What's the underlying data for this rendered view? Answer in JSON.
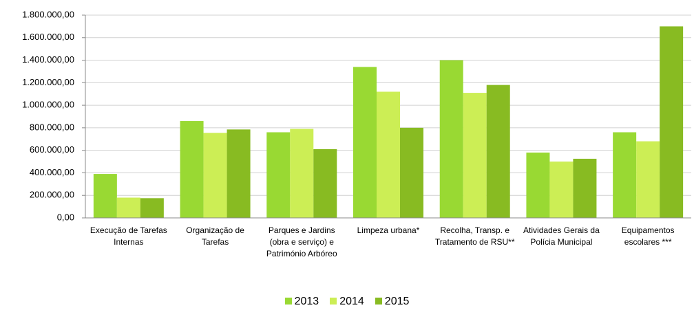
{
  "chart_data": {
    "type": "bar",
    "categories": [
      "Execução de Tarefas Internas",
      "Organização de Tarefas",
      "Parques e Jardins (obra e serviço) e Património Arbóreo",
      "Limpeza urbana*",
      "Recolha, Transp. e Tratamento de RSU**",
      "Atividades Gerais da Polícia Municipal",
      "Equipamentos escolares ***"
    ],
    "series": [
      {
        "name": "2013",
        "color": "#99d933",
        "values": [
          390000,
          860000,
          760000,
          1340000,
          1400000,
          580000,
          760000
        ]
      },
      {
        "name": "2014",
        "color": "#ccee55",
        "values": [
          180000,
          755000,
          790000,
          1120000,
          1110000,
          500000,
          680000
        ]
      },
      {
        "name": "2015",
        "color": "#88bb22",
        "values": [
          175000,
          785000,
          610000,
          800000,
          1180000,
          525000,
          1700000
        ]
      }
    ],
    "ylim": [
      0,
      1800000
    ],
    "yticks": [
      {
        "value": 0,
        "label": "0,00"
      },
      {
        "value": 200000,
        "label": "200.000,00"
      },
      {
        "value": 400000,
        "label": "400.000,00"
      },
      {
        "value": 600000,
        "label": "600.000,00"
      },
      {
        "value": 800000,
        "label": "800.000,00"
      },
      {
        "value": 1000000,
        "label": "1.000.000,00"
      },
      {
        "value": 1200000,
        "label": "1.200.000,00"
      },
      {
        "value": 1400000,
        "label": "1.400.000,00"
      },
      {
        "value": 1600000,
        "label": "1.600.000,00"
      },
      {
        "value": 1800000,
        "label": "1.800.000,00"
      }
    ],
    "grid": true,
    "legend": "bottom"
  }
}
